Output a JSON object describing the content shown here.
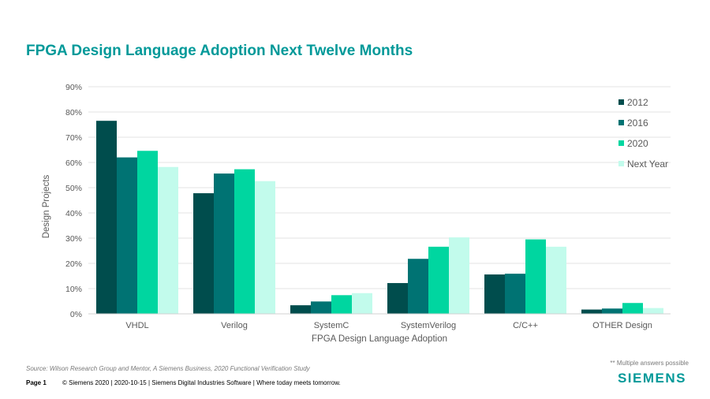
{
  "title": "FPGA Design Language Adoption Next Twelve Months",
  "chart_data": {
    "type": "bar",
    "title": "FPGA Design Language Adoption Next Twelve Months",
    "xlabel": "FPGA Design Language Adoption",
    "ylabel": "Design Projects",
    "ylim": [
      0,
      90
    ],
    "yticks": [
      "0%",
      "10%",
      "20%",
      "30%",
      "40%",
      "50%",
      "60%",
      "70%",
      "80%",
      "90%"
    ],
    "categories": [
      "VHDL",
      "Verilog",
      "SystemC",
      "SystemVerilog",
      "C/C++",
      "OTHER Design"
    ],
    "series": [
      {
        "name": "2012",
        "color": "#004D4D",
        "values": [
          76.5,
          47.8,
          3.4,
          12.2,
          15.6,
          1.7
        ]
      },
      {
        "name": "2016",
        "color": "#007373",
        "values": [
          62,
          55.6,
          4.9,
          21.8,
          15.9,
          2.1
        ]
      },
      {
        "name": "2020",
        "color": "#00D6A0",
        "values": [
          64.6,
          57.3,
          7.4,
          26.6,
          29.5,
          4.3
        ]
      },
      {
        "name": "Next Year",
        "color": "#C2FBEC",
        "values": [
          58.2,
          52.6,
          8.2,
          30.3,
          26.6,
          2.3
        ]
      }
    ],
    "grid": true,
    "legend": "right"
  },
  "source": "Source:  Wilson Research Group and Mentor,  A Siemens Business, 2020 Functional Verification Study",
  "note": "** Multiple answers possible",
  "footer": {
    "page": "Page 1",
    "text": "© Siemens 2020 | 2020-10-15 | Siemens Digital Industries Software | Where today meets tomorrow."
  },
  "logo": "SIEMENS"
}
